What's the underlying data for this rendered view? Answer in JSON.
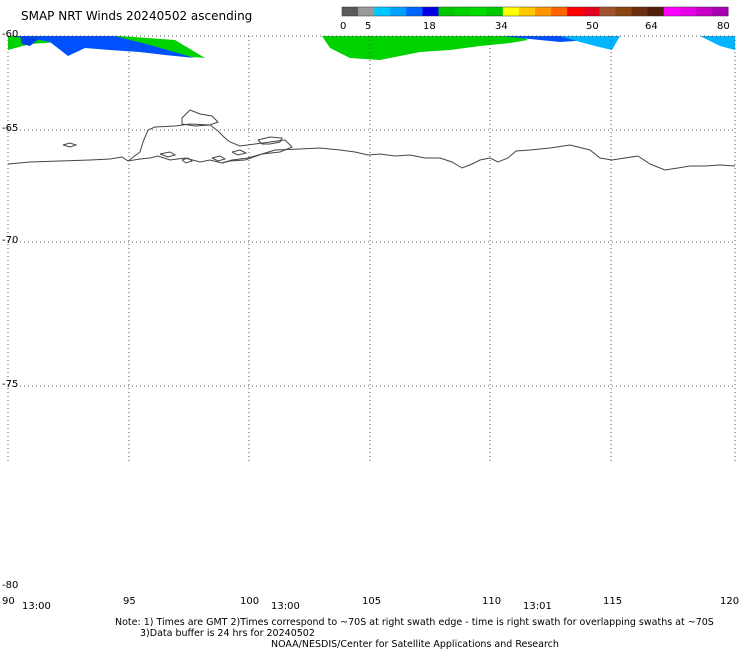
{
  "title": "SMAP NRT Winds 20240502 ascending",
  "colorbar": {
    "ticks": [
      "0",
      "5",
      "18",
      "34",
      "50",
      "64",
      "80"
    ],
    "segments": [
      {
        "color": "#5a5a5a"
      },
      {
        "color": "#9a9a9a"
      },
      {
        "color": "#00c8ff"
      },
      {
        "color": "#00a0ff"
      },
      {
        "color": "#0064ff"
      },
      {
        "color": "#0000e6"
      },
      {
        "color": "#00c800"
      },
      {
        "color": "#00d200"
      },
      {
        "color": "#00dc00"
      },
      {
        "color": "#00c800"
      },
      {
        "color": "#ffff00"
      },
      {
        "color": "#ffc800"
      },
      {
        "color": "#ff9600"
      },
      {
        "color": "#ff6400"
      },
      {
        "color": "#ff0000"
      },
      {
        "color": "#e6001e"
      },
      {
        "color": "#a0522d"
      },
      {
        "color": "#8b4513"
      },
      {
        "color": "#6e2d0f"
      },
      {
        "color": "#501e0a"
      },
      {
        "color": "#ff00ff"
      },
      {
        "color": "#e600e6"
      },
      {
        "color": "#c800c8"
      },
      {
        "color": "#aa00b4"
      }
    ]
  },
  "latitude_labels": [
    "-60",
    "-65",
    "-70",
    "-75",
    "-80"
  ],
  "longitude_labels": [
    "90",
    "95",
    "100",
    "105",
    "110",
    "115",
    "120"
  ],
  "time_labels": [
    "13:00",
    "13:00",
    "13:01"
  ],
  "notes": {
    "line1": "Note: 1) Times are GMT 2)Times correspond to ~70S at right swath edge - time is right swath for overlapping swaths at ~70S",
    "line2": "3)Data buffer is 24 hrs for 20240502",
    "line3": "NOAA/NESDIS/Center for Satellite Applications and Research"
  },
  "colors": {
    "coastline": "#444444",
    "grid": "#555555",
    "green": "#00d200",
    "blue": "#0050ff",
    "cyan": "#00b4ff"
  }
}
